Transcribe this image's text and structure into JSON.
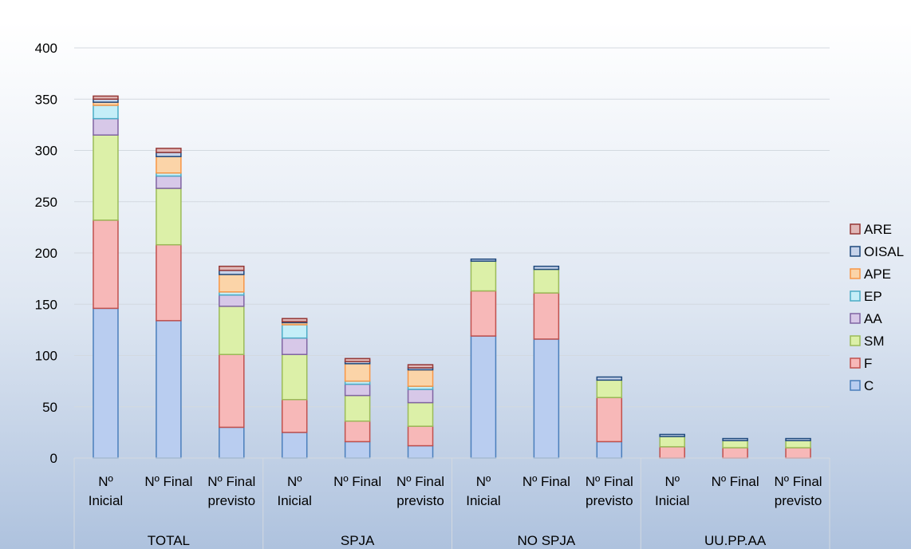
{
  "chart_data": {
    "type": "bar",
    "stacked": true,
    "title": "",
    "xlabel": "",
    "ylabel": "",
    "ylim": [
      0,
      400
    ],
    "yticks": [
      0,
      50,
      100,
      150,
      200,
      250,
      300,
      350,
      400
    ],
    "grid": true,
    "legend_position": "right",
    "groups": [
      {
        "label": "TOTAL",
        "categories": [
          [
            "Nº",
            "Inicial"
          ],
          [
            "Nº Final"
          ],
          [
            "Nº Final",
            "previsto"
          ]
        ]
      },
      {
        "label": "SPJA",
        "categories": [
          [
            "Nº",
            "Inicial"
          ],
          [
            "Nº Final"
          ],
          [
            "Nº Final",
            "previsto"
          ]
        ]
      },
      {
        "label": "NO SPJA",
        "categories": [
          [
            "Nº",
            "Inicial"
          ],
          [
            "Nº Final"
          ],
          [
            "Nº Final",
            "previsto"
          ]
        ]
      },
      {
        "label": "UU.PP.AA",
        "categories": [
          [
            "Nº",
            "Inicial"
          ],
          [
            "Nº Final"
          ],
          [
            "Nº Final",
            "previsto"
          ]
        ]
      }
    ],
    "series": [
      {
        "name": "C",
        "fill": "#b9cdf0",
        "stroke": "#4a7ebb",
        "values": [
          146,
          134,
          30,
          25,
          16,
          12,
          119,
          116,
          16,
          0,
          0,
          0
        ]
      },
      {
        "name": "F",
        "fill": "#f7b8b8",
        "stroke": "#c0504d",
        "values": [
          86,
          74,
          71,
          32,
          20,
          19,
          44,
          45,
          43,
          11,
          10,
          10
        ]
      },
      {
        "name": "SM",
        "fill": "#dcf0a8",
        "stroke": "#9bbb59",
        "values": [
          83,
          55,
          47,
          44,
          25,
          23,
          29,
          23,
          17,
          10,
          7,
          7
        ]
      },
      {
        "name": "AA",
        "fill": "#d7c8e8",
        "stroke": "#8064a2",
        "values": [
          16,
          12,
          11,
          16,
          11,
          13,
          0,
          0,
          0,
          0,
          0,
          0
        ]
      },
      {
        "name": "EP",
        "fill": "#c4eef8",
        "stroke": "#4bacc6",
        "values": [
          13,
          3,
          3,
          13,
          3,
          3,
          0,
          0,
          0,
          0,
          0,
          0
        ]
      },
      {
        "name": "APE",
        "fill": "#fbd4a8",
        "stroke": "#f79646",
        "values": [
          3,
          16,
          17,
          2,
          17,
          16,
          0,
          0,
          0,
          0,
          0,
          0
        ]
      },
      {
        "name": "OISAL",
        "fill": "#c6d3ea",
        "stroke": "#1f497d",
        "values": [
          3,
          4,
          4,
          1,
          2,
          2,
          2,
          3,
          3,
          2,
          2,
          2
        ]
      },
      {
        "name": "ARE",
        "fill": "#e0b8b8",
        "stroke": "#953735",
        "values": [
          3,
          4,
          4,
          3,
          3,
          3,
          0,
          0,
          0,
          0,
          0,
          0
        ]
      }
    ]
  }
}
